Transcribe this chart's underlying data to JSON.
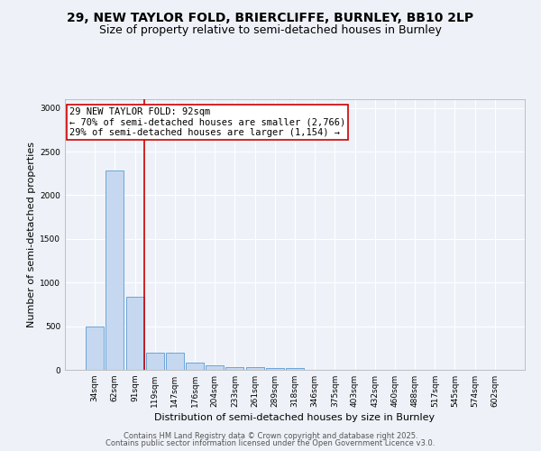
{
  "title": "29, NEW TAYLOR FOLD, BRIERCLIFFE, BURNLEY, BB10 2LP",
  "subtitle": "Size of property relative to semi-detached houses in Burnley",
  "xlabel": "Distribution of semi-detached houses by size in Burnley",
  "ylabel": "Number of semi-detached properties",
  "categories": [
    "34sqm",
    "62sqm",
    "91sqm",
    "119sqm",
    "147sqm",
    "176sqm",
    "204sqm",
    "233sqm",
    "261sqm",
    "289sqm",
    "318sqm",
    "346sqm",
    "375sqm",
    "403sqm",
    "432sqm",
    "460sqm",
    "488sqm",
    "517sqm",
    "545sqm",
    "574sqm",
    "602sqm"
  ],
  "values": [
    500,
    2280,
    840,
    200,
    200,
    85,
    50,
    35,
    30,
    25,
    20,
    0,
    0,
    0,
    0,
    0,
    0,
    0,
    0,
    0,
    0
  ],
  "bar_color": "#c5d8f0",
  "bar_edge_color": "#5b9bd5",
  "property_bin_index": 2,
  "red_line_color": "#cc0000",
  "annotation_line1": "29 NEW TAYLOR FOLD: 92sqm",
  "annotation_line2": "← 70% of semi-detached houses are smaller (2,766)",
  "annotation_line3": "29% of semi-detached houses are larger (1,154) →",
  "annotation_box_color": "#ffffff",
  "annotation_box_edge": "#cc0000",
  "ylim": [
    0,
    3100
  ],
  "yticks": [
    0,
    500,
    1000,
    1500,
    2000,
    2500,
    3000
  ],
  "footer_line1": "Contains HM Land Registry data © Crown copyright and database right 2025.",
  "footer_line2": "Contains public sector information licensed under the Open Government Licence v3.0.",
  "background_color": "#eef2f8",
  "grid_color": "#ffffff",
  "title_fontsize": 10,
  "subtitle_fontsize": 9,
  "axis_label_fontsize": 8,
  "tick_fontsize": 6.5,
  "annotation_fontsize": 7.5,
  "footer_fontsize": 6
}
